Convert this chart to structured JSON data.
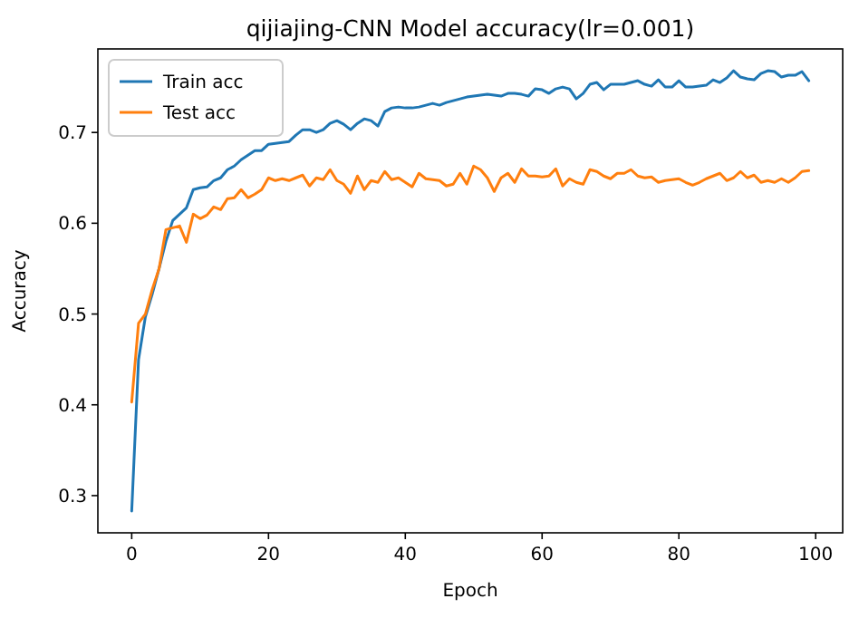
{
  "chart_data": {
    "type": "line",
    "title": "qijiajing-CNN Model accuracy(lr=0.001)",
    "xlabel": "Epoch",
    "ylabel": "Accuracy",
    "x": [
      0,
      1,
      2,
      3,
      4,
      5,
      6,
      7,
      8,
      9,
      10,
      11,
      12,
      13,
      14,
      15,
      16,
      17,
      18,
      19,
      20,
      21,
      22,
      23,
      24,
      25,
      26,
      27,
      28,
      29,
      30,
      31,
      32,
      33,
      34,
      35,
      36,
      37,
      38,
      39,
      40,
      41,
      42,
      43,
      44,
      45,
      46,
      47,
      48,
      49,
      50,
      51,
      52,
      53,
      54,
      55,
      56,
      57,
      58,
      59,
      60,
      61,
      62,
      63,
      64,
      65,
      66,
      67,
      68,
      69,
      70,
      71,
      72,
      73,
      74,
      75,
      76,
      77,
      78,
      79,
      80,
      81,
      82,
      83,
      84,
      85,
      86,
      87,
      88,
      89,
      90,
      91,
      92,
      93,
      94,
      95,
      96,
      97,
      98,
      99
    ],
    "series": [
      {
        "name": "Train acc",
        "color": "#1f77b4",
        "values": [
          0.283,
          0.45,
          0.497,
          0.522,
          0.55,
          0.58,
          0.603,
          0.61,
          0.617,
          0.637,
          0.639,
          0.64,
          0.647,
          0.65,
          0.659,
          0.663,
          0.67,
          0.675,
          0.68,
          0.68,
          0.687,
          0.688,
          0.689,
          0.69,
          0.697,
          0.703,
          0.703,
          0.7,
          0.703,
          0.71,
          0.713,
          0.709,
          0.703,
          0.71,
          0.715,
          0.713,
          0.707,
          0.723,
          0.727,
          0.728,
          0.727,
          0.727,
          0.728,
          0.73,
          0.732,
          0.73,
          0.733,
          0.735,
          0.737,
          0.739,
          0.74,
          0.741,
          0.742,
          0.741,
          0.74,
          0.743,
          0.743,
          0.742,
          0.74,
          0.748,
          0.747,
          0.743,
          0.748,
          0.75,
          0.748,
          0.737,
          0.743,
          0.753,
          0.755,
          0.747,
          0.753,
          0.753,
          0.753,
          0.755,
          0.757,
          0.753,
          0.751,
          0.758,
          0.75,
          0.75,
          0.757,
          0.75,
          0.75,
          0.751,
          0.752,
          0.758,
          0.755,
          0.76,
          0.768,
          0.761,
          0.759,
          0.758,
          0.765,
          0.768,
          0.767,
          0.761,
          0.763,
          0.763,
          0.767,
          0.757
        ]
      },
      {
        "name": "Test acc",
        "color": "#ff7f0e",
        "values": [
          0.403,
          0.49,
          0.5,
          0.527,
          0.55,
          0.593,
          0.595,
          0.597,
          0.579,
          0.61,
          0.605,
          0.609,
          0.618,
          0.615,
          0.627,
          0.628,
          0.637,
          0.628,
          0.632,
          0.637,
          0.65,
          0.647,
          0.649,
          0.647,
          0.65,
          0.653,
          0.641,
          0.65,
          0.648,
          0.659,
          0.647,
          0.643,
          0.633,
          0.652,
          0.637,
          0.647,
          0.645,
          0.657,
          0.648,
          0.65,
          0.645,
          0.64,
          0.655,
          0.649,
          0.648,
          0.647,
          0.641,
          0.643,
          0.655,
          0.643,
          0.663,
          0.659,
          0.65,
          0.635,
          0.65,
          0.655,
          0.645,
          0.66,
          0.652,
          0.652,
          0.651,
          0.652,
          0.66,
          0.641,
          0.649,
          0.645,
          0.643,
          0.659,
          0.657,
          0.652,
          0.649,
          0.655,
          0.655,
          0.659,
          0.652,
          0.65,
          0.651,
          0.645,
          0.647,
          0.648,
          0.649,
          0.645,
          0.642,
          0.645,
          0.649,
          0.652,
          0.655,
          0.647,
          0.65,
          0.657,
          0.65,
          0.653,
          0.645,
          0.647,
          0.645,
          0.649,
          0.645,
          0.65,
          0.657,
          0.658
        ]
      }
    ],
    "xlim": [
      -4.95,
      103.95
    ],
    "ylim": [
      0.259,
      0.792
    ],
    "xticks": [
      0,
      20,
      40,
      60,
      80,
      100
    ],
    "yticks": [
      {
        "value": 0.3,
        "label": "0.3"
      },
      {
        "value": 0.4,
        "label": "0.4"
      },
      {
        "value": 0.5,
        "label": "0.5"
      },
      {
        "value": 0.6,
        "label": "0.6"
      },
      {
        "value": 0.7,
        "label": "0.7"
      }
    ],
    "legend": "top left",
    "grid": false
  }
}
